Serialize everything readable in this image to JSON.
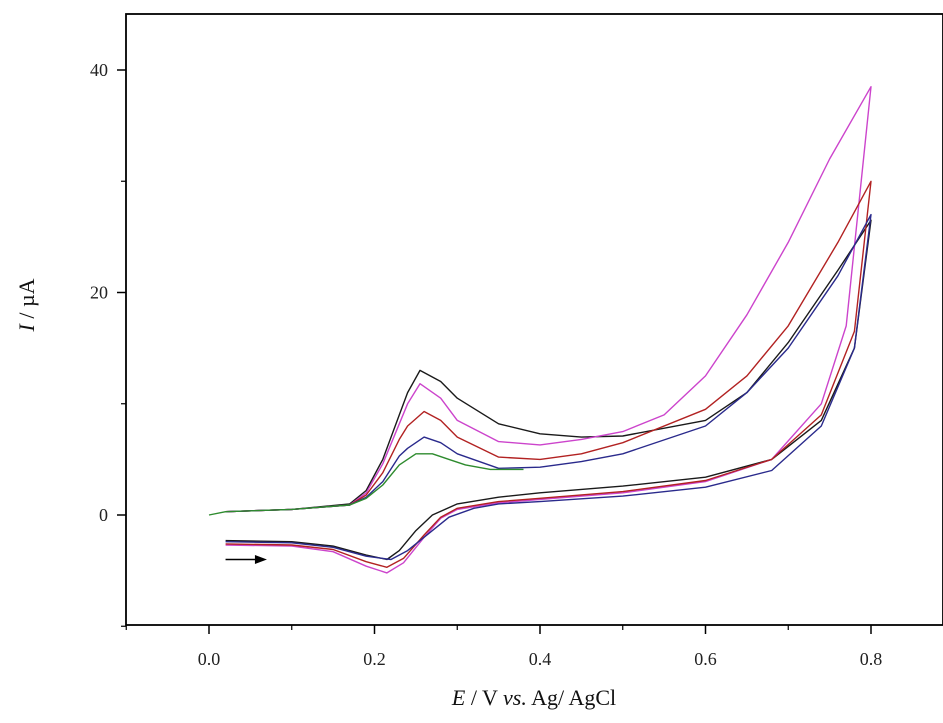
{
  "chart_data": {
    "type": "line",
    "title": "",
    "xlabel": {
      "italic": "E",
      "rest": " / V ",
      "vs": "vs.",
      "tail": " Ag/ AgCl"
    },
    "ylabel": {
      "italic": "I",
      "rest": " / µA"
    },
    "xlim": [
      -0.1,
      0.9
    ],
    "ylim": [
      -10,
      45
    ],
    "xticks": [
      0.0,
      0.2,
      0.4,
      0.6,
      0.8
    ],
    "xtick_labels": [
      "0.0",
      "0.2",
      "0.4",
      "0.6",
      "0.8"
    ],
    "yticks": [
      0,
      20,
      40
    ],
    "ytick_labels": [
      "0",
      "20",
      "40"
    ],
    "grid": false,
    "legend": "none",
    "annotation": {
      "type": "arrow",
      "direction": "right",
      "x_from": 0.02,
      "x_to": 0.07,
      "y": -4
    },
    "series": [
      {
        "color": "#1a1a1a",
        "points": [
          [
            0.02,
            -2.3
          ],
          [
            0.1,
            -2.4
          ],
          [
            0.15,
            -2.8
          ],
          [
            0.19,
            -3.6
          ],
          [
            0.215,
            -4.0
          ],
          [
            0.23,
            -3.2
          ],
          [
            0.25,
            -1.4
          ],
          [
            0.27,
            0.0
          ],
          [
            0.3,
            1.0
          ],
          [
            0.35,
            1.6
          ],
          [
            0.4,
            2.0
          ],
          [
            0.5,
            2.6
          ],
          [
            0.6,
            3.4
          ],
          [
            0.68,
            5.0
          ],
          [
            0.74,
            8.5
          ],
          [
            0.78,
            15.0
          ],
          [
            0.8,
            26.5
          ],
          [
            0.76,
            22.0
          ],
          [
            0.7,
            15.5
          ],
          [
            0.65,
            11.0
          ],
          [
            0.6,
            8.5
          ],
          [
            0.5,
            7.1
          ],
          [
            0.45,
            7.0
          ],
          [
            0.4,
            7.3
          ],
          [
            0.35,
            8.2
          ],
          [
            0.3,
            10.5
          ],
          [
            0.28,
            12.0
          ],
          [
            0.255,
            13.0
          ],
          [
            0.24,
            11.0
          ],
          [
            0.23,
            9.0
          ],
          [
            0.21,
            5.0
          ],
          [
            0.19,
            2.2
          ],
          [
            0.17,
            1.0
          ],
          [
            0.1,
            0.5
          ],
          [
            0.02,
            0.3
          ]
        ]
      },
      {
        "color": "#cc44cc",
        "points": [
          [
            0.02,
            -2.7
          ],
          [
            0.1,
            -2.8
          ],
          [
            0.15,
            -3.3
          ],
          [
            0.19,
            -4.6
          ],
          [
            0.215,
            -5.2
          ],
          [
            0.235,
            -4.3
          ],
          [
            0.26,
            -2.0
          ],
          [
            0.28,
            -0.3
          ],
          [
            0.3,
            0.5
          ],
          [
            0.35,
            1.1
          ],
          [
            0.4,
            1.4
          ],
          [
            0.5,
            2.0
          ],
          [
            0.6,
            3.0
          ],
          [
            0.68,
            5.0
          ],
          [
            0.74,
            10.0
          ],
          [
            0.77,
            17.0
          ],
          [
            0.8,
            38.5
          ],
          [
            0.75,
            32.0
          ],
          [
            0.7,
            24.5
          ],
          [
            0.65,
            18.0
          ],
          [
            0.6,
            12.5
          ],
          [
            0.55,
            9.0
          ],
          [
            0.5,
            7.5
          ],
          [
            0.45,
            6.8
          ],
          [
            0.4,
            6.3
          ],
          [
            0.35,
            6.6
          ],
          [
            0.3,
            8.5
          ],
          [
            0.28,
            10.5
          ],
          [
            0.255,
            11.8
          ],
          [
            0.24,
            10.0
          ],
          [
            0.23,
            8.2
          ],
          [
            0.21,
            4.6
          ],
          [
            0.19,
            2.0
          ],
          [
            0.17,
            0.9
          ],
          [
            0.1,
            0.5
          ],
          [
            0.02,
            0.3
          ]
        ]
      },
      {
        "color": "#b22222",
        "points": [
          [
            0.02,
            -2.6
          ],
          [
            0.1,
            -2.7
          ],
          [
            0.15,
            -3.1
          ],
          [
            0.19,
            -4.2
          ],
          [
            0.215,
            -4.7
          ],
          [
            0.235,
            -3.9
          ],
          [
            0.26,
            -1.8
          ],
          [
            0.28,
            -0.2
          ],
          [
            0.3,
            0.6
          ],
          [
            0.35,
            1.2
          ],
          [
            0.4,
            1.5
          ],
          [
            0.5,
            2.1
          ],
          [
            0.6,
            3.1
          ],
          [
            0.68,
            5.0
          ],
          [
            0.74,
            9.0
          ],
          [
            0.78,
            16.5
          ],
          [
            0.8,
            30.0
          ],
          [
            0.76,
            24.5
          ],
          [
            0.7,
            17.0
          ],
          [
            0.65,
            12.5
          ],
          [
            0.6,
            9.5
          ],
          [
            0.5,
            6.5
          ],
          [
            0.45,
            5.5
          ],
          [
            0.4,
            5.0
          ],
          [
            0.35,
            5.2
          ],
          [
            0.3,
            7.0
          ],
          [
            0.28,
            8.5
          ],
          [
            0.26,
            9.3
          ],
          [
            0.24,
            8.0
          ],
          [
            0.23,
            6.8
          ],
          [
            0.21,
            3.8
          ],
          [
            0.19,
            1.8
          ],
          [
            0.17,
            0.9
          ],
          [
            0.1,
            0.5
          ],
          [
            0.02,
            0.3
          ]
        ]
      },
      {
        "color": "#2a2a8c",
        "points": [
          [
            0.02,
            -2.4
          ],
          [
            0.1,
            -2.5
          ],
          [
            0.15,
            -2.9
          ],
          [
            0.19,
            -3.7
          ],
          [
            0.22,
            -4.0
          ],
          [
            0.24,
            -3.2
          ],
          [
            0.27,
            -1.4
          ],
          [
            0.29,
            -0.2
          ],
          [
            0.32,
            0.6
          ],
          [
            0.35,
            1.0
          ],
          [
            0.4,
            1.2
          ],
          [
            0.5,
            1.7
          ],
          [
            0.6,
            2.5
          ],
          [
            0.68,
            4.0
          ],
          [
            0.74,
            8.0
          ],
          [
            0.78,
            15.0
          ],
          [
            0.8,
            27.0
          ],
          [
            0.76,
            21.5
          ],
          [
            0.7,
            15.0
          ],
          [
            0.65,
            11.0
          ],
          [
            0.6,
            8.0
          ],
          [
            0.5,
            5.5
          ],
          [
            0.45,
            4.8
          ],
          [
            0.4,
            4.3
          ],
          [
            0.35,
            4.2
          ],
          [
            0.3,
            5.5
          ],
          [
            0.28,
            6.5
          ],
          [
            0.26,
            7.0
          ],
          [
            0.24,
            6.0
          ],
          [
            0.23,
            5.3
          ],
          [
            0.21,
            3.0
          ],
          [
            0.19,
            1.6
          ],
          [
            0.17,
            0.9
          ],
          [
            0.1,
            0.5
          ],
          [
            0.02,
            0.3
          ]
        ]
      },
      {
        "color": "#2e8b2e",
        "points": [
          [
            0.0,
            0.0
          ],
          [
            0.02,
            0.3
          ],
          [
            0.1,
            0.5
          ],
          [
            0.17,
            0.9
          ],
          [
            0.19,
            1.5
          ],
          [
            0.21,
            2.7
          ],
          [
            0.23,
            4.5
          ],
          [
            0.25,
            5.5
          ],
          [
            0.27,
            5.5
          ],
          [
            0.29,
            5.0
          ],
          [
            0.31,
            4.5
          ],
          [
            0.34,
            4.1
          ],
          [
            0.38,
            4.1
          ]
        ]
      }
    ]
  }
}
